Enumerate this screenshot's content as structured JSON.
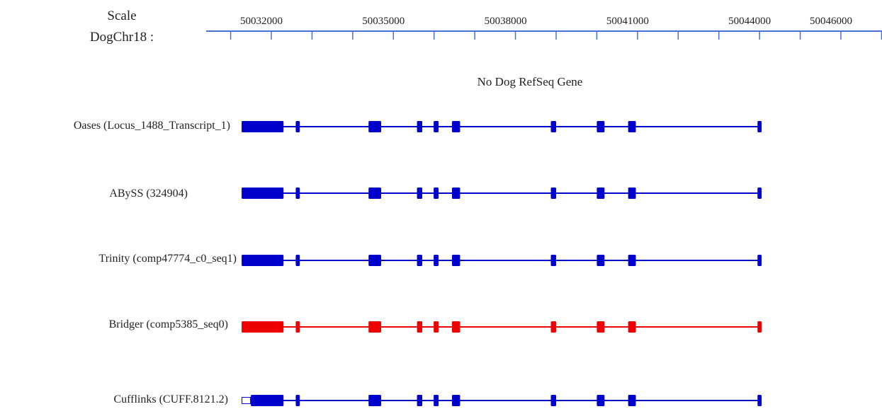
{
  "scale": {
    "label_line1": "Scale",
    "label_line2": "DogChr18 :",
    "ticks": [
      {
        "position": 50032000,
        "label": "50032000"
      },
      {
        "position": 50035000,
        "label": "50035000"
      },
      {
        "position": 50038000,
        "label": "50038000"
      },
      {
        "position": 50041000,
        "label": "50041000"
      },
      {
        "position": 50044000,
        "label": "50044000"
      },
      {
        "position": 50046000,
        "label": "50046000"
      }
    ],
    "axis_color": "#4a6fd8"
  },
  "refseq_note": "No Dog RefSeq Gene",
  "colors": {
    "blue": "#0000cc",
    "red": "#ee0000"
  },
  "tracks": [
    {
      "label": "Oases  (Locus_1488_Transcript_1)",
      "color": "blue",
      "open_start": false
    },
    {
      "label": "ABySS (324904)",
      "color": "blue",
      "open_start": false
    },
    {
      "label": "Trinity (comp47774_c0_seq1)",
      "color": "blue",
      "open_start": false
    },
    {
      "label": "Bridger (comp5385_seq0)",
      "color": "red",
      "open_start": false
    },
    {
      "label": "Cufflinks (CUFF.8121.2)",
      "color": "blue",
      "open_start": true
    }
  ],
  "gene_model": {
    "exons_bp": [
      [
        50031270,
        50032300
      ],
      [
        50032600,
        50032700
      ],
      [
        50034390,
        50034700
      ],
      [
        50035580,
        50035710
      ],
      [
        50035990,
        50036110
      ],
      [
        50036440,
        50036640
      ],
      [
        50038870,
        50039000
      ],
      [
        50040000,
        50040190
      ],
      [
        50040770,
        50040960
      ],
      [
        50043950,
        50044050
      ]
    ]
  }
}
